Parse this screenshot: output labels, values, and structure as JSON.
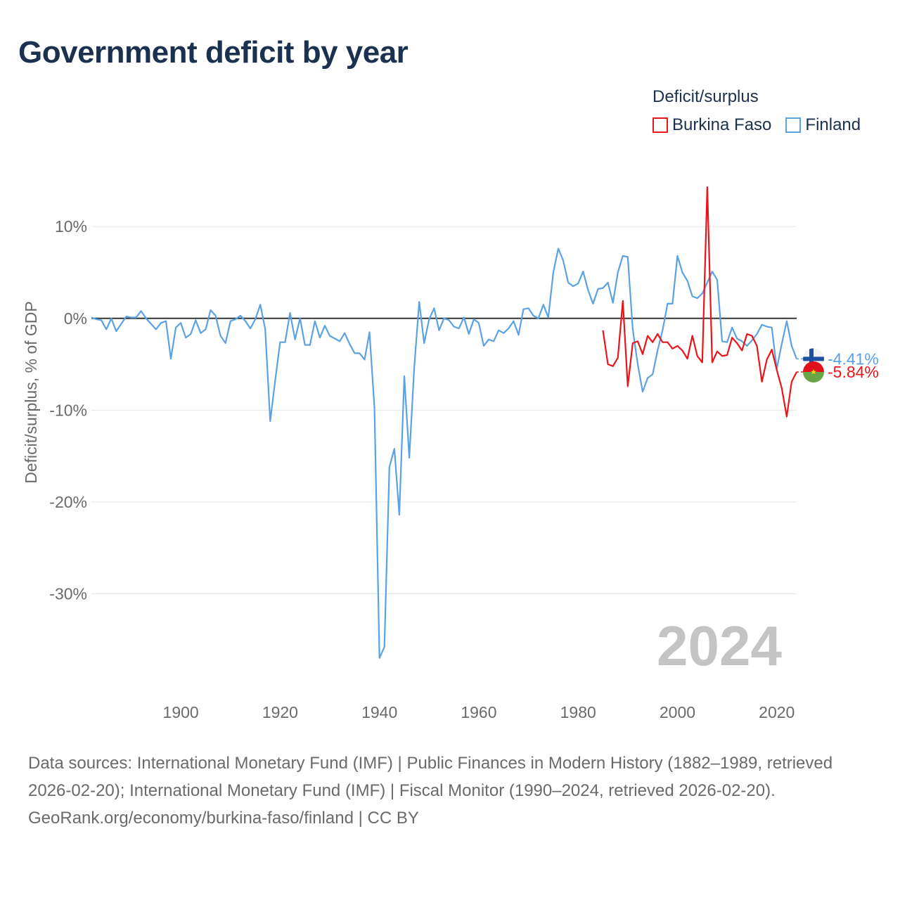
{
  "title": "Government deficit by year",
  "legend": {
    "title": "Deficit/surplus",
    "items": [
      {
        "label": "Burkina Faso",
        "color": "#e8161b"
      },
      {
        "label": "Finland",
        "color": "#5aa2e4"
      }
    ]
  },
  "chart_data": {
    "type": "line",
    "title": "Government deficit by year",
    "xlabel": "",
    "ylabel": "Deficit/surplus, % of GDP",
    "xlim": [
      1882,
      2024
    ],
    "ylim": [
      -40,
      14
    ],
    "yticks": [
      10,
      0,
      -10,
      -20,
      -30
    ],
    "ytick_labels": [
      "10%",
      "0%",
      "-10%",
      "-20%",
      "-30%"
    ],
    "xticks": [
      1900,
      1920,
      1940,
      1960,
      1980,
      2000,
      2020
    ],
    "xtick_labels": [
      "1900",
      "1920",
      "1940",
      "1960",
      "1980",
      "2000",
      "2020"
    ],
    "year_label": "2024",
    "zero_line": true,
    "grid": true,
    "series": [
      {
        "name": "Finland",
        "color": "#5aa2e4",
        "end_label": "-4.41%",
        "flag": "finland-flag-icon",
        "x": [
          1882,
          1883,
          1884,
          1885,
          1886,
          1887,
          1888,
          1889,
          1890,
          1891,
          1892,
          1893,
          1894,
          1895,
          1896,
          1897,
          1898,
          1899,
          1900,
          1901,
          1902,
          1903,
          1904,
          1905,
          1906,
          1907,
          1908,
          1909,
          1910,
          1911,
          1912,
          1913,
          1914,
          1915,
          1916,
          1917,
          1918,
          1919,
          1920,
          1921,
          1922,
          1923,
          1924,
          1925,
          1926,
          1927,
          1928,
          1929,
          1930,
          1931,
          1932,
          1933,
          1934,
          1935,
          1936,
          1937,
          1938,
          1939,
          1940,
          1941,
          1942,
          1943,
          1944,
          1945,
          1946,
          1947,
          1948,
          1949,
          1950,
          1951,
          1952,
          1953,
          1954,
          1955,
          1956,
          1957,
          1958,
          1959,
          1960,
          1961,
          1962,
          1963,
          1964,
          1965,
          1966,
          1967,
          1968,
          1969,
          1970,
          1971,
          1972,
          1973,
          1974,
          1975,
          1976,
          1977,
          1978,
          1979,
          1980,
          1981,
          1982,
          1983,
          1984,
          1985,
          1986,
          1987,
          1988,
          1989,
          1990,
          1991,
          1992,
          1993,
          1994,
          1995,
          1996,
          1997,
          1998,
          1999,
          2000,
          2001,
          2002,
          2003,
          2004,
          2005,
          2006,
          2007,
          2008,
          2009,
          2010,
          2011,
          2012,
          2013,
          2014,
          2015,
          2016,
          2017,
          2018,
          2019,
          2020,
          2021,
          2022,
          2023,
          2024
        ],
        "values": [
          0.1,
          -0.1,
          -0.2,
          -1.2,
          0.0,
          -1.4,
          -0.6,
          0.2,
          0.1,
          0.1,
          0.8,
          0.0,
          -0.6,
          -1.2,
          -0.5,
          -0.3,
          -4.4,
          -1.0,
          -0.5,
          -2.1,
          -1.7,
          -0.2,
          -1.6,
          -1.2,
          0.9,
          0.3,
          -1.9,
          -2.7,
          -0.3,
          -0.1,
          0.3,
          -0.3,
          -1.1,
          -0.1,
          1.5,
          -1.2,
          -11.2,
          -6.8,
          -2.6,
          -2.6,
          0.6,
          -2.3,
          0.0,
          -2.9,
          -2.9,
          -0.3,
          -2.1,
          -0.8,
          -1.9,
          -2.2,
          -2.5,
          -1.6,
          -2.8,
          -3.8,
          -3.8,
          -4.5,
          -1.5,
          -9.8,
          -37.0,
          -35.8,
          -16.2,
          -14.2,
          -21.4,
          -6.3,
          -15.2,
          -5.4,
          1.8,
          -2.7,
          -0.1,
          1.1,
          -1.3,
          0.0,
          -0.2,
          -0.9,
          -1.1,
          0.1,
          -1.7,
          -0.1,
          -0.5,
          -3.0,
          -2.3,
          -2.5,
          -1.3,
          -1.6,
          -1.1,
          -0.3,
          -1.8,
          1.0,
          1.1,
          0.3,
          0.0,
          1.5,
          0.1,
          5.0,
          7.6,
          6.3,
          3.9,
          3.5,
          3.8,
          5.1,
          3.1,
          1.6,
          3.2,
          3.3,
          3.9,
          1.7,
          5.0,
          6.8,
          6.7,
          -1.2,
          -5.0,
          -8.0,
          -6.5,
          -6.1,
          -3.5,
          -1.3,
          1.6,
          1.6,
          6.8,
          5.0,
          4.1,
          2.4,
          2.2,
          2.7,
          3.9,
          5.1,
          4.2,
          -2.5,
          -2.6,
          -1.0,
          -2.2,
          -2.5,
          -3.0,
          -2.4,
          -1.7,
          -0.7,
          -0.9,
          -1.0,
          -5.5,
          -2.8,
          -0.3,
          -3.0,
          -4.41
        ]
      },
      {
        "name": "Burkina Faso",
        "color": "#e8161b",
        "end_label": "-5.84%",
        "flag": "burkina-faso-flag-icon",
        "x": [
          1985,
          1986,
          1987,
          1988,
          1989,
          1990,
          1991,
          1992,
          1993,
          1994,
          1995,
          1996,
          1997,
          1998,
          1999,
          2000,
          2001,
          2002,
          2003,
          2004,
          2005,
          2006,
          2007,
          2008,
          2009,
          2010,
          2011,
          2012,
          2013,
          2014,
          2015,
          2016,
          2017,
          2018,
          2019,
          2020,
          2021,
          2022,
          2023,
          2024
        ],
        "values": [
          -1.3,
          -5.0,
          -5.2,
          -4.3,
          1.9,
          -7.4,
          -2.7,
          -2.5,
          -3.9,
          -1.9,
          -2.6,
          -1.7,
          -2.6,
          -2.6,
          -3.3,
          -3.0,
          -3.5,
          -4.4,
          -1.9,
          -4.1,
          -4.8,
          14.3,
          -4.8,
          -3.6,
          -4.1,
          -4.0,
          -2.1,
          -2.7,
          -3.5,
          -1.7,
          -1.9,
          -3.0,
          -6.9,
          -4.5,
          -3.4,
          -5.6,
          -7.6,
          -10.7,
          -6.9,
          -5.84
        ]
      }
    ]
  },
  "footer": {
    "sources": "Data sources: International Monetary Fund (IMF) | Public Finances in Modern History (1882–1989, retrieved 2026-02-20); International Monetary Fund (IMF) | Fiscal Monitor (1990–2024, retrieved 2026-02-20).",
    "credit": "GeoRank.org/economy/burkina-faso/finland | CC BY"
  }
}
